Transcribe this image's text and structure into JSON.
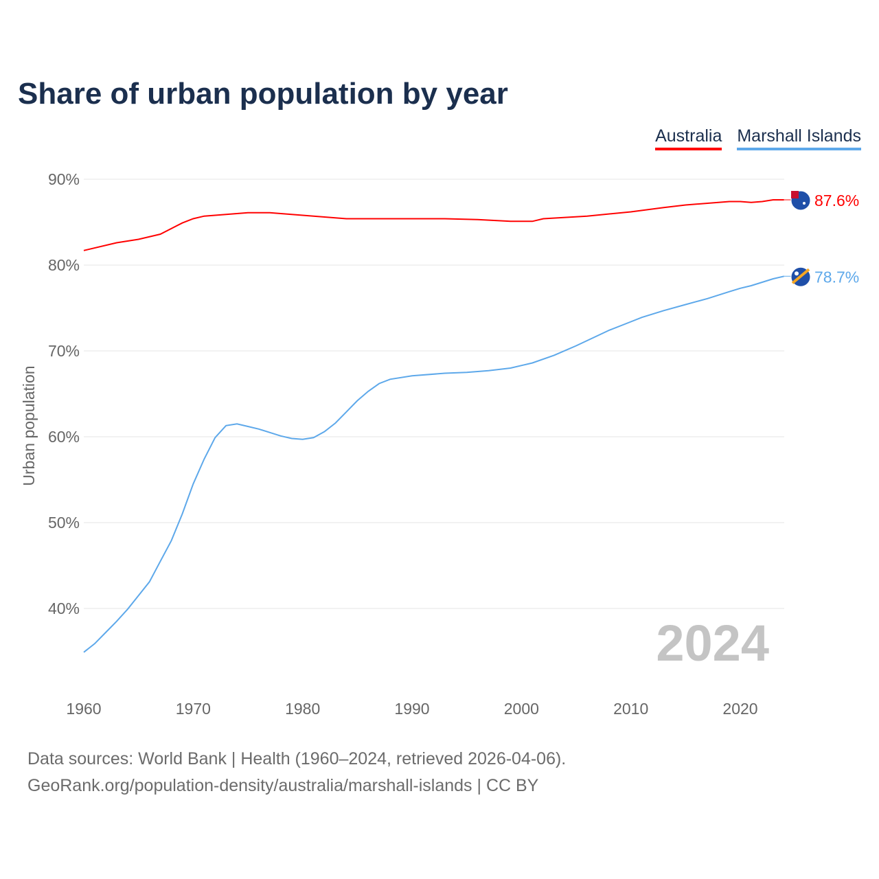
{
  "chart_data": {
    "type": "line",
    "title": "Share of urban population by year",
    "xlabel": "",
    "ylabel": "Urban population",
    "xlim": [
      1960,
      2024
    ],
    "ylim": [
      34,
      92
    ],
    "y_ticks": [
      40,
      50,
      60,
      70,
      80,
      90
    ],
    "y_tick_labels": [
      "40%",
      "50%",
      "60%",
      "70%",
      "80%",
      "90%"
    ],
    "x_ticks": [
      1960,
      1970,
      1980,
      1990,
      2000,
      2010,
      2020
    ],
    "x_tick_labels": [
      "1960",
      "1970",
      "1980",
      "1990",
      "2000",
      "2010",
      "2020"
    ],
    "grid": true,
    "legend_placement": "top-right",
    "year_watermark": "2024",
    "series": [
      {
        "name": "Australia",
        "color": "#ff0000",
        "end_label": "87.6%",
        "x": [
          1960,
          1963,
          1965,
          1967,
          1969,
          1970,
          1971,
          1975,
          1977,
          1980,
          1984,
          1993,
          1996,
          1999,
          2001,
          2002,
          2006,
          2010,
          2013,
          2015,
          2019,
          2020,
          2021,
          2022,
          2023,
          2024
        ],
        "y": [
          81.7,
          82.6,
          83.0,
          83.6,
          84.9,
          85.4,
          85.7,
          86.1,
          86.1,
          85.8,
          85.4,
          85.4,
          85.3,
          85.1,
          85.1,
          85.4,
          85.7,
          86.2,
          86.7,
          87.0,
          87.4,
          87.4,
          87.3,
          87.4,
          87.6,
          87.6
        ]
      },
      {
        "name": "Marshall Islands",
        "color": "#5da8ea",
        "end_label": "78.7%",
        "x": [
          1960,
          1961,
          1962,
          1963,
          1964,
          1965,
          1966,
          1967,
          1968,
          1969,
          1970,
          1971,
          1972,
          1973,
          1974,
          1975,
          1976,
          1977,
          1978,
          1979,
          1980,
          1981,
          1982,
          1983,
          1984,
          1985,
          1986,
          1987,
          1988,
          1990,
          1993,
          1995,
          1997,
          1999,
          2001,
          2003,
          2005,
          2007,
          2008,
          2010,
          2011,
          2013,
          2015,
          2017,
          2019,
          2020,
          2021,
          2022,
          2023,
          2024
        ],
        "y": [
          34.9,
          35.9,
          37.2,
          38.5,
          39.9,
          41.5,
          43.1,
          45.5,
          47.9,
          51.0,
          54.5,
          57.4,
          59.9,
          61.3,
          61.5,
          61.2,
          60.9,
          60.5,
          60.1,
          59.8,
          59.7,
          59.9,
          60.6,
          61.6,
          62.9,
          64.2,
          65.3,
          66.2,
          66.7,
          67.1,
          67.4,
          67.5,
          67.7,
          68.0,
          68.6,
          69.5,
          70.6,
          71.8,
          72.4,
          73.4,
          73.9,
          74.7,
          75.4,
          76.1,
          76.9,
          77.3,
          77.6,
          78.0,
          78.4,
          78.7
        ]
      }
    ]
  },
  "footer": {
    "line1": "Data sources: World Bank | Health (1960–2024, retrieved 2026-04-06).",
    "line2": "GeoRank.org/population-density/australia/marshall-islands | CC BY"
  }
}
